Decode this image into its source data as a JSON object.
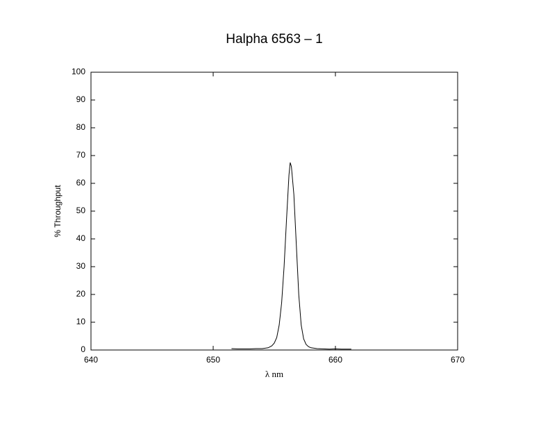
{
  "chart_data": {
    "type": "line",
    "title": "Halpha 6563 – 1",
    "xlabel": "λ nm",
    "ylabel": "% Throughput",
    "x": [
      651.5,
      652,
      652.5,
      653,
      653.5,
      654,
      654.5,
      654.8,
      655.0,
      655.2,
      655.4,
      655.6,
      655.8,
      656.0,
      656.2,
      656.3,
      656.4,
      656.6,
      656.8,
      657.0,
      657.2,
      657.4,
      657.6,
      657.8,
      658,
      658.5,
      659,
      659.5,
      660,
      660.5,
      661,
      661.3
    ],
    "series": [
      {
        "name": "Halpha 6563 – 1",
        "color": "#000000",
        "values": [
          0.5,
          0.4,
          0.4,
          0.4,
          0.5,
          0.5,
          0.8,
          1.5,
          2.5,
          4.5,
          9,
          17,
          30,
          47,
          63,
          67.5,
          66,
          56,
          38,
          20,
          9,
          4,
          2,
          1.2,
          0.8,
          0.5,
          0.4,
          0.3,
          0.4,
          0.3,
          0.3,
          0.3
        ]
      }
    ],
    "xlim": [
      640,
      670
    ],
    "xticks": [
      640,
      650,
      660,
      670
    ],
    "ylim": [
      0,
      100
    ],
    "yticks": [
      0,
      10,
      20,
      30,
      40,
      50,
      60,
      70,
      80,
      90,
      100
    ],
    "grid": false
  }
}
